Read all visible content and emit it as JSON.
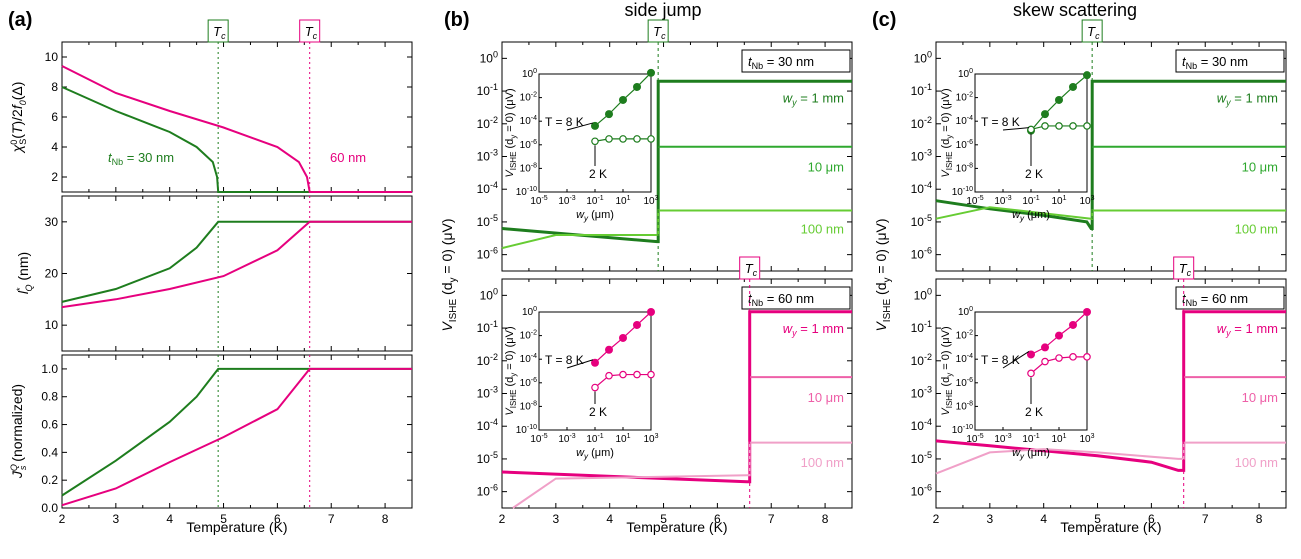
{
  "panels": {
    "a": {
      "label": "(a)"
    },
    "b": {
      "label": "(b)",
      "title": "side jump"
    },
    "c": {
      "label": "(c)",
      "title": "skew scattering"
    }
  },
  "colors": {
    "green_dark": "#1e7d1e",
    "green_light": "#66cc33",
    "green_mid": "#2fa82f",
    "pink_dark": "#e6007e",
    "pink_light": "#f0a0c8",
    "pink_mid": "#ee60a8"
  },
  "xlabel": "Temperature (K)",
  "tc_label": "Tc",
  "a_annotations": {
    "green": "t_Nb = 30 nm",
    "pink": "60 nm"
  },
  "ylabels": {
    "a1": "χ°S(T)/2f0(Δ)",
    "a2": "l*Q (nm)",
    "a3": "JQs (normalized)",
    "b": "VQISHE (dy = 0) (μV)"
  },
  "box_labels": {
    "top": "t_Nb = 30 nm",
    "bottom": "t_Nb = 60 nm"
  },
  "wy_labels": [
    "w_y = 1 mm",
    "10 μm",
    "100 nm"
  ],
  "inset": {
    "xlabel": "w_y (μm)",
    "ylabel": "VQISHE (dy = 0) (μV)",
    "t8": "T = 8 K",
    "t2": "2 K"
  },
  "chart_data": [
    {
      "id": "a1",
      "type": "line",
      "title": "",
      "xlabel": "",
      "ylabel": "χ°S(T)/2f0(Δ)",
      "xlim": [
        2,
        8.5
      ],
      "ylim": [
        1,
        11
      ],
      "yticks": [
        2,
        4,
        6,
        8,
        10
      ],
      "xticks": [
        2,
        3,
        4,
        5,
        6,
        7,
        8
      ],
      "series": [
        {
          "color": "green",
          "x": [
            2,
            3,
            4,
            4.5,
            4.8,
            4.88,
            4.9,
            8.5
          ],
          "y": [
            8.0,
            6.4,
            5.0,
            4.0,
            3.0,
            2.0,
            1.0,
            1.0
          ]
        },
        {
          "color": "pink",
          "x": [
            2,
            3,
            4,
            5,
            6,
            6.4,
            6.55,
            6.6,
            8.5
          ],
          "y": [
            9.4,
            7.6,
            6.4,
            5.3,
            4.0,
            3.0,
            2.0,
            1.0,
            1.0
          ]
        }
      ]
    },
    {
      "id": "a2",
      "type": "line",
      "title": "",
      "xlabel": "",
      "ylabel": "l*Q (nm)",
      "xlim": [
        2,
        8.5
      ],
      "ylim": [
        5,
        35
      ],
      "yticks": [
        10,
        20,
        30
      ],
      "xticks": [
        2,
        3,
        4,
        5,
        6,
        7,
        8
      ],
      "series": [
        {
          "color": "green",
          "x": [
            2,
            3,
            4,
            4.5,
            4.9,
            8.5
          ],
          "y": [
            14.5,
            17.0,
            21.0,
            25.0,
            30.0,
            30.0
          ]
        },
        {
          "color": "pink",
          "x": [
            2,
            3,
            4,
            5,
            6,
            6.6,
            8.5
          ],
          "y": [
            13.5,
            15.0,
            17.0,
            19.5,
            24.5,
            30.0,
            30.0
          ]
        }
      ]
    },
    {
      "id": "a3",
      "type": "line",
      "title": "",
      "xlabel": "Temperature (K)",
      "ylabel": "JQs (normalized)",
      "xlim": [
        2,
        8.5
      ],
      "ylim": [
        0,
        1.1
      ],
      "yticks": [
        0.0,
        0.2,
        0.4,
        0.6,
        0.8,
        1.0
      ],
      "xticks": [
        2,
        3,
        4,
        5,
        6,
        7,
        8
      ],
      "series": [
        {
          "color": "green",
          "x": [
            2,
            3,
            4,
            4.5,
            4.9,
            8.5
          ],
          "y": [
            0.09,
            0.34,
            0.62,
            0.8,
            1.0,
            1.0
          ]
        },
        {
          "color": "pink",
          "x": [
            2,
            3,
            4,
            5,
            6,
            6.6,
            8.5
          ],
          "y": [
            0.02,
            0.14,
            0.33,
            0.51,
            0.71,
            1.0,
            1.0
          ]
        }
      ]
    },
    {
      "id": "b_top",
      "type": "line",
      "scale": "log",
      "title": "side jump",
      "xlabel": "",
      "xlim": [
        2,
        8.5
      ],
      "ylim_exp": [
        -6.5,
        0.5
      ],
      "tc": 4.9,
      "series": [
        {
          "color": "green_dark",
          "x": [
            2,
            4.88,
            4.9,
            4.9,
            8.5
          ],
          "y_exp": [
            -5.2,
            -5.6,
            -5.6,
            -0.7,
            -0.7
          ]
        },
        {
          "color": "green_mid",
          "x": [
            4.9,
            8.5
          ],
          "y_exp": [
            -2.7,
            -2.7
          ]
        },
        {
          "color": "green_light",
          "x": [
            2,
            3,
            4.88,
            4.9,
            4.9,
            8.5
          ],
          "y_exp": [
            -5.8,
            -5.4,
            -5.4,
            -5.4,
            -4.65,
            -4.65
          ]
        }
      ]
    },
    {
      "id": "b_bot",
      "type": "line",
      "scale": "log",
      "title": "",
      "xlabel": "Temperature (K)",
      "xlim": [
        2,
        8.5
      ],
      "ylim_exp": [
        -6.5,
        0.5
      ],
      "tc": 6.6,
      "series": [
        {
          "color": "pink_dark",
          "x": [
            2,
            6.55,
            6.6,
            6.6,
            8.5
          ],
          "y_exp": [
            -5.4,
            -5.7,
            -5.7,
            -0.5,
            -0.5
          ]
        },
        {
          "color": "pink_mid",
          "x": [
            6.6,
            8.5
          ],
          "y_exp": [
            -2.5,
            -2.5
          ]
        },
        {
          "color": "pink_light",
          "x": [
            2.2,
            3,
            6.55,
            6.6,
            6.6,
            8.5
          ],
          "y_exp": [
            -6.5,
            -5.6,
            -5.5,
            -5.5,
            -4.5,
            -4.5
          ]
        }
      ]
    },
    {
      "id": "c_top",
      "type": "line",
      "scale": "log",
      "title": "skew scattering",
      "xlabel": "",
      "xlim": [
        2,
        8.5
      ],
      "ylim_exp": [
        -6.5,
        0.5
      ],
      "tc": 4.9,
      "series": [
        {
          "color": "green_dark",
          "x": [
            2,
            3,
            4,
            4.8,
            4.88,
            4.9,
            4.9,
            8.5
          ],
          "y_exp": [
            -4.35,
            -4.6,
            -4.8,
            -5.0,
            -5.2,
            -5.2,
            -0.7,
            -0.7
          ]
        },
        {
          "color": "green_mid",
          "x": [
            4.9,
            8.5
          ],
          "y_exp": [
            -2.7,
            -2.7
          ]
        },
        {
          "color": "green_light",
          "x": [
            2,
            3,
            4.88,
            4.9,
            4.9,
            8.5
          ],
          "y_exp": [
            -4.9,
            -4.55,
            -4.9,
            -4.9,
            -4.65,
            -4.65
          ]
        }
      ]
    },
    {
      "id": "c_bot",
      "type": "line",
      "scale": "log",
      "title": "",
      "xlabel": "Temperature (K)",
      "xlim": [
        2,
        8.5
      ],
      "ylim_exp": [
        -6.5,
        0.5
      ],
      "tc": 6.6,
      "series": [
        {
          "color": "pink_dark",
          "x": [
            2,
            3,
            4,
            5,
            6,
            6.5,
            6.6,
            6.6,
            8.5
          ],
          "y_exp": [
            -4.45,
            -4.6,
            -4.75,
            -4.9,
            -5.1,
            -5.35,
            -5.35,
            -0.5,
            -0.5
          ]
        },
        {
          "color": "pink_mid",
          "x": [
            6.6,
            8.5
          ],
          "y_exp": [
            -2.5,
            -2.5
          ]
        },
        {
          "color": "pink_light",
          "x": [
            2,
            3,
            4,
            5,
            6.5,
            6.6,
            6.6,
            8.5
          ],
          "y_exp": [
            -5.45,
            -4.8,
            -4.7,
            -4.8,
            -5.0,
            -5.0,
            -4.5,
            -4.5
          ]
        }
      ]
    }
  ],
  "insets": [
    {
      "id": "ins_b_top",
      "scheme": "green",
      "filled": {
        "lx": [
          -1,
          0,
          1,
          2,
          3
        ],
        "ly": [
          -4.4,
          -3.4,
          -2.2,
          -1.1,
          0.1
        ]
      },
      "open": {
        "lx": [
          -1,
          0,
          1,
          2,
          3
        ],
        "ly": [
          -5.7,
          -5.5,
          -5.5,
          -5.5,
          -5.5
        ]
      }
    },
    {
      "id": "ins_b_bot",
      "scheme": "pink",
      "filled": {
        "lx": [
          -1,
          0,
          1,
          2,
          3
        ],
        "ly": [
          -4.3,
          -3.2,
          -2.2,
          -1.1,
          0.0
        ]
      },
      "open": {
        "lx": [
          -1,
          0,
          1,
          2,
          3
        ],
        "ly": [
          -6.4,
          -5.4,
          -5.3,
          -5.3,
          -5.3
        ]
      }
    },
    {
      "id": "ins_c_top",
      "scheme": "green",
      "filled": {
        "lx": [
          -1,
          0,
          1,
          2,
          3
        ],
        "ly": [
          -4.8,
          -3.4,
          -2.2,
          -1.1,
          -0.1
        ]
      },
      "open": {
        "lx": [
          -1,
          0,
          1,
          2,
          3
        ],
        "ly": [
          -4.7,
          -4.4,
          -4.4,
          -4.4,
          -4.4
        ]
      }
    },
    {
      "id": "ins_c_bot",
      "scheme": "pink",
      "filled": {
        "lx": [
          -1,
          0,
          1,
          2,
          3
        ],
        "ly": [
          -3.6,
          -3.0,
          -2.0,
          -1.1,
          0.0
        ]
      },
      "open": {
        "lx": [
          -1,
          0,
          1,
          2,
          3
        ],
        "ly": [
          -5.2,
          -4.2,
          -3.9,
          -3.8,
          -3.8
        ]
      }
    }
  ]
}
